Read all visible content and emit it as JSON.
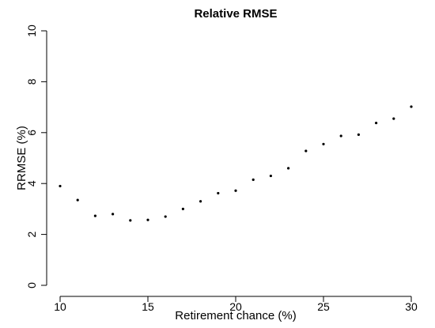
{
  "chart_data": {
    "type": "scatter",
    "title": "Relative RMSE",
    "xlabel": "Retirement chance (%)",
    "ylabel": "RRMSE (%)",
    "xlim": [
      10,
      30
    ],
    "ylim": [
      0,
      10
    ],
    "xticks": [
      "10",
      "15",
      "20",
      "25",
      "30"
    ],
    "yticks": [
      "0",
      "2",
      "4",
      "6",
      "8",
      "10"
    ],
    "grid": false,
    "series": [
      {
        "x": [
          10,
          11,
          12,
          13,
          14,
          15,
          16,
          17,
          18,
          19,
          20,
          21,
          22,
          23,
          24,
          25,
          26,
          27,
          28,
          29,
          30
        ],
        "y": [
          3.9,
          3.35,
          2.73,
          2.8,
          2.55,
          2.57,
          2.7,
          3.0,
          3.3,
          3.62,
          3.72,
          4.15,
          4.3,
          4.6,
          5.28,
          5.55,
          5.87,
          5.92,
          6.38,
          6.55,
          7.02
        ]
      }
    ]
  }
}
